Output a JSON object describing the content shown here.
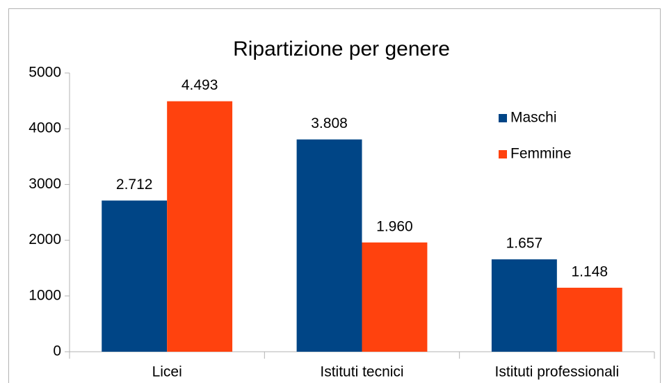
{
  "chart_data": {
    "type": "bar",
    "title": "Ripartizione per genere",
    "categories": [
      "Licei",
      "Istituti tecnici",
      "Istituti professionali"
    ],
    "series": [
      {
        "name": "Maschi",
        "color": "#004586",
        "values": [
          2712,
          3808,
          1657
        ],
        "value_labels": [
          "2.712",
          "3.808",
          "1.657"
        ]
      },
      {
        "name": "Femmine",
        "color": "#ff420e",
        "values": [
          4493,
          1960,
          1148
        ],
        "value_labels": [
          "4.493",
          "1.960",
          "1.148"
        ]
      }
    ],
    "ylim": [
      0,
      5000
    ],
    "yticks": [
      0,
      1000,
      2000,
      3000,
      4000,
      5000
    ],
    "legend": "right"
  }
}
